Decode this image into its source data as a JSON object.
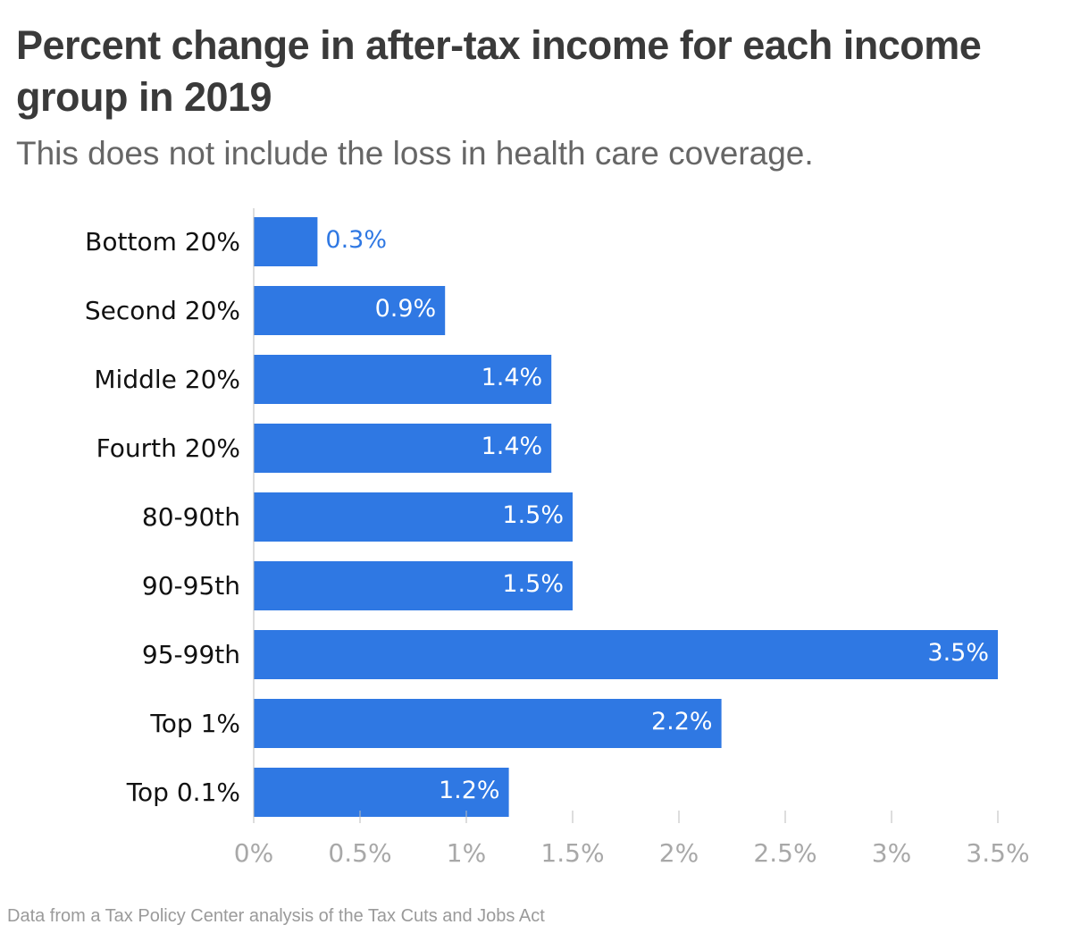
{
  "title": "Percent change in after-tax income for each income group in 2019",
  "subtitle": "This does not include the loss in health care coverage.",
  "source": "Data from a Tax Policy Center analysis of the Tax Cuts and Jobs Act",
  "colors": {
    "bar": "#2f78e3",
    "label_inside": "#ffffff",
    "label_outside": "#2f78e3",
    "axis": "#bbbbbb",
    "tick_text": "#a8a8a8"
  },
  "chart_data": {
    "type": "bar",
    "orientation": "horizontal",
    "title": "Percent change in after-tax income for each income group in 2019",
    "subtitle": "This does not include the loss in health care coverage.",
    "xlabel": "",
    "ylabel": "",
    "categories": [
      "Bottom 20%",
      "Second 20%",
      "Middle 20%",
      "Fourth 20%",
      "80-90th",
      "90-95th",
      "95-99th",
      "Top 1%",
      "Top 0.1%"
    ],
    "values": [
      0.3,
      0.9,
      1.4,
      1.4,
      1.5,
      1.5,
      3.5,
      2.2,
      1.2
    ],
    "value_labels": [
      "0.3%",
      "0.9%",
      "1.4%",
      "1.4%",
      "1.5%",
      "1.5%",
      "3.5%",
      "2.2%",
      "1.2%"
    ],
    "xlim": [
      0,
      3.5
    ],
    "x_ticks": [
      0,
      0.5,
      1,
      1.5,
      2,
      2.5,
      3,
      3.5
    ],
    "x_tick_labels": [
      "0%",
      "0.5%",
      "1%",
      "1.5%",
      "2%",
      "2.5%",
      "3%",
      "3.5%"
    ],
    "grid": false,
    "legend": "none"
  }
}
